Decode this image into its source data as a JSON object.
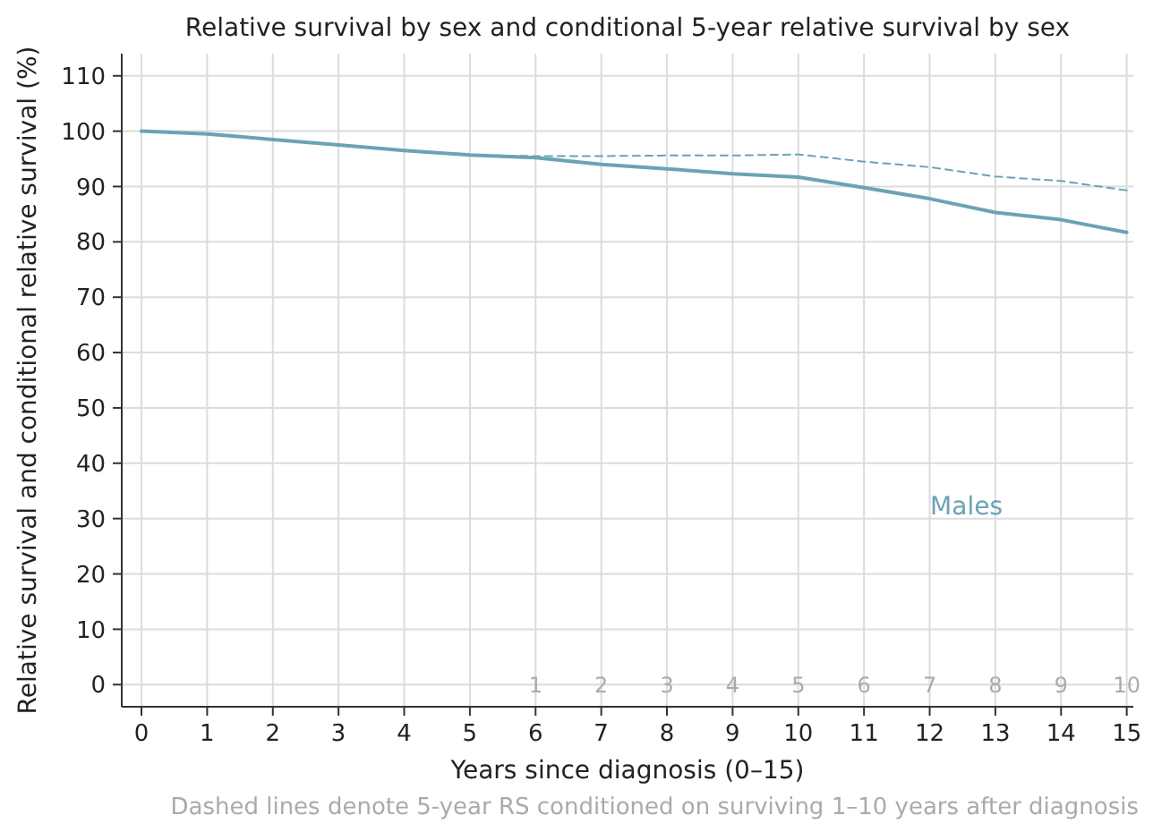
{
  "chart_data": {
    "type": "line",
    "title": "Relative survival by sex and conditional 5-year relative survival by sex",
    "xlabel": "Years since diagnosis (0–15)",
    "ylabel": "Relative survival and conditional relative survival (%)",
    "x": [
      0,
      1,
      2,
      3,
      4,
      5,
      6,
      7,
      8,
      9,
      10,
      11,
      12,
      13,
      14,
      15
    ],
    "series": [
      {
        "name": "Males",
        "color": "#6ba3b5",
        "values": [
          100,
          99.5,
          98.5,
          97.5,
          96.5,
          95.7,
          95.2,
          94,
          93.2,
          92.3,
          91.7,
          89.8,
          87.8,
          85.3,
          84,
          81.7
        ]
      },
      {
        "color": "#6ba3b5",
        "line_style": "dashed",
        "x": [
          5,
          6,
          7,
          8,
          9,
          10,
          11,
          12,
          13,
          14,
          15
        ],
        "values": [
          95.7,
          95.5,
          95.5,
          95.6,
          95.6,
          95.8,
          94.5,
          93.5,
          91.8,
          91,
          89.3
        ]
      }
    ],
    "xlim": [
      -0.3,
      15.1
    ],
    "xticks": [
      0,
      1,
      2,
      3,
      4,
      5,
      6,
      7,
      8,
      9,
      10,
      11,
      12,
      13,
      14,
      15
    ],
    "ylim": [
      -4,
      114
    ],
    "yticks": [
      0,
      10,
      20,
      30,
      40,
      50,
      60,
      70,
      80,
      90,
      100,
      110
    ],
    "grid": true,
    "x2lim": [
      -5.3,
      10.1
    ],
    "x2ticks": [
      1,
      2,
      3,
      4,
      5,
      6,
      7,
      8,
      9,
      10
    ],
    "annotations": [
      "Dashed lines denote 5-year RS conditioned on surviving 1–10 years after diagnosis"
    ]
  }
}
